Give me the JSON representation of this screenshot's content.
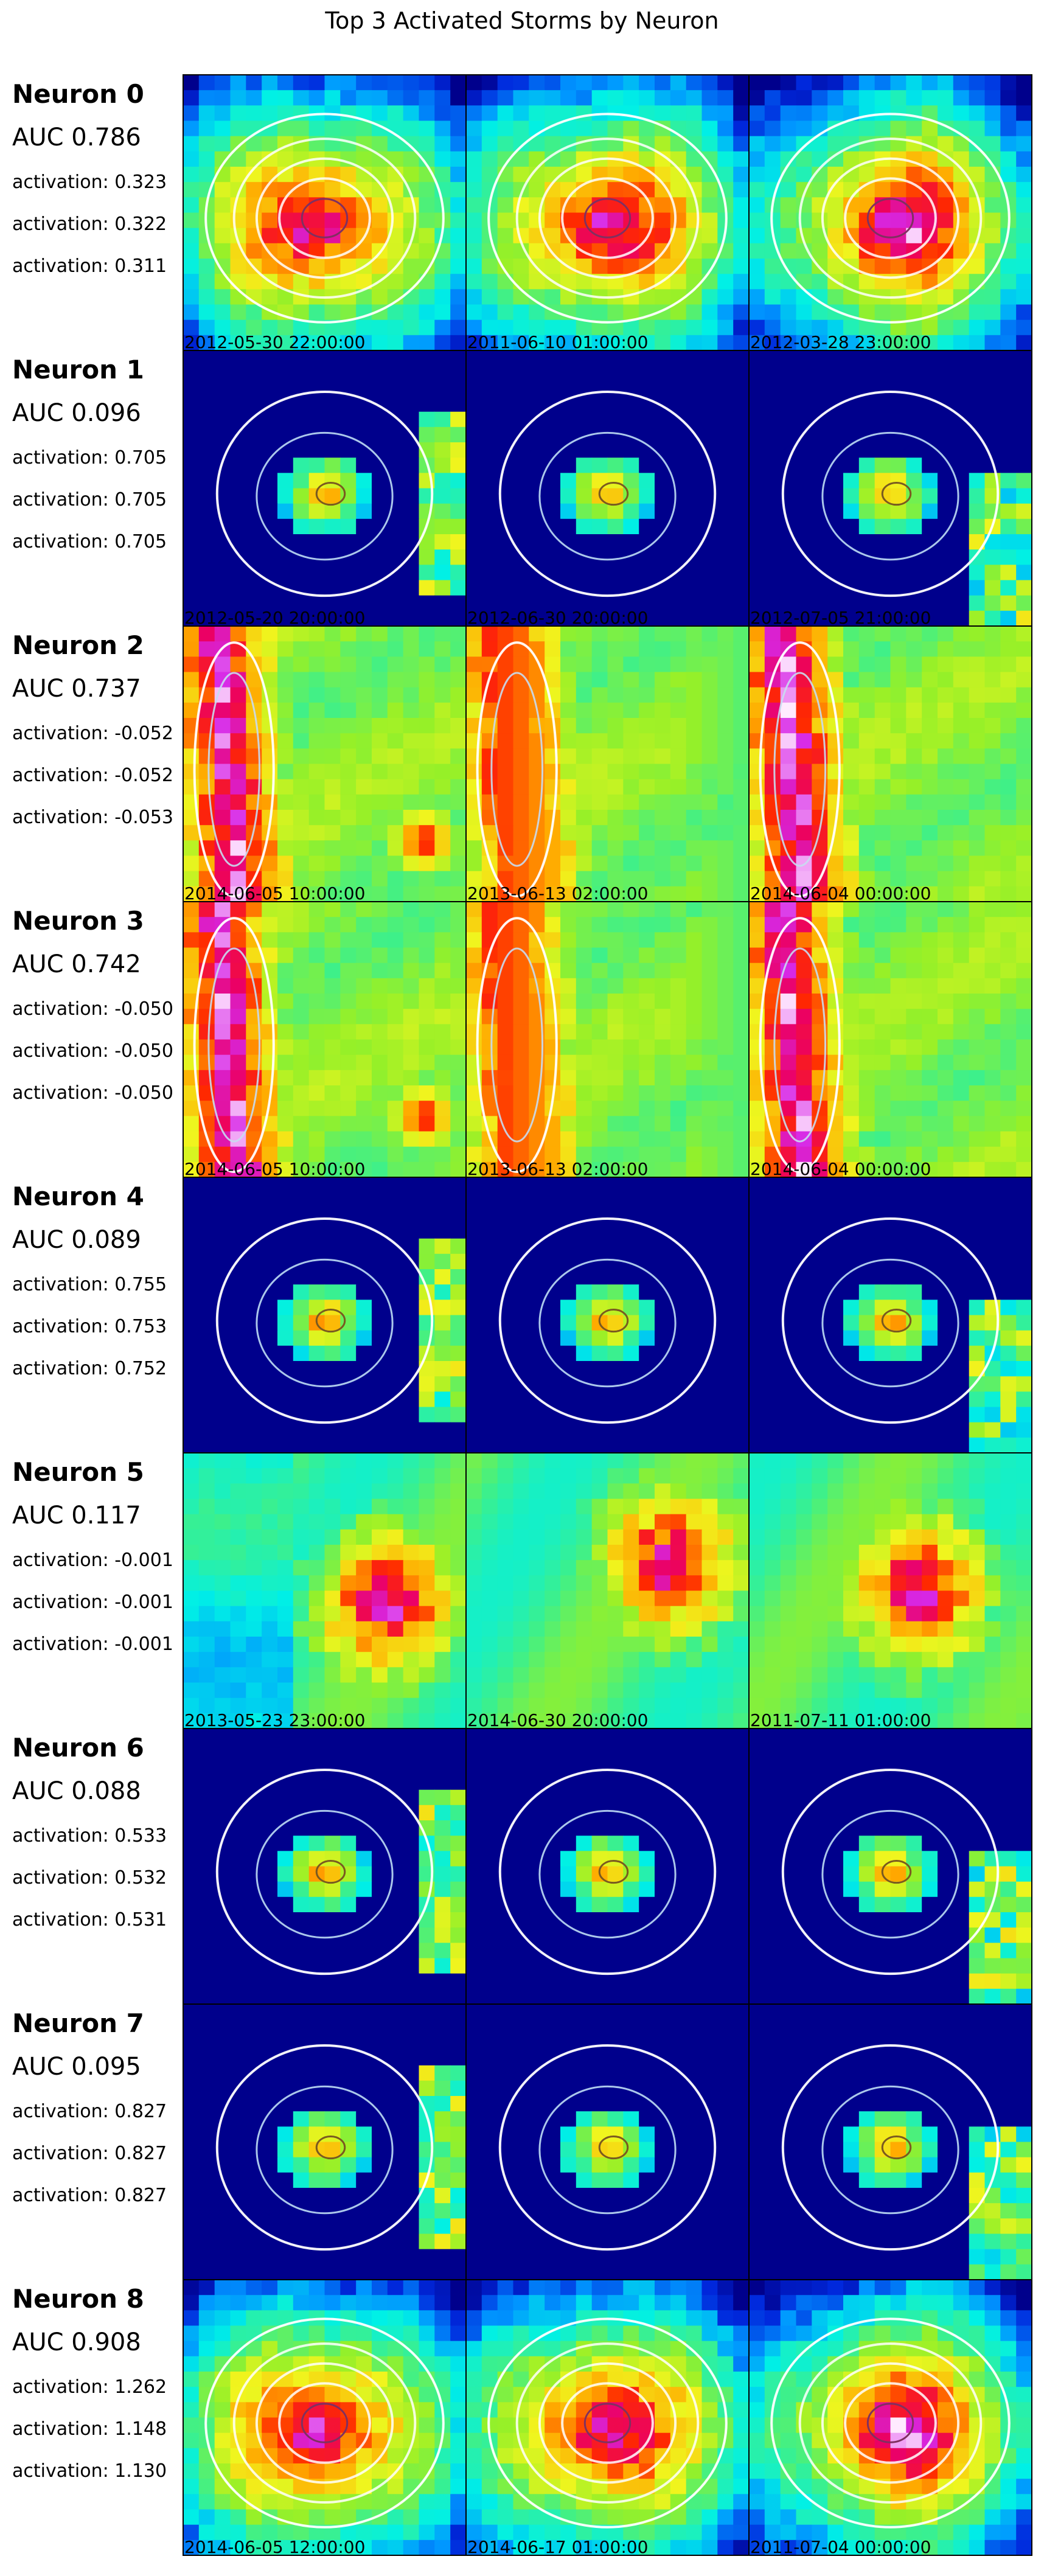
{
  "chart_data": {
    "type": "image-grid",
    "title": "Top 3 Activated Storms by Neuron",
    "columns_per_row": 3,
    "neurons": [
      {
        "label": "Neuron 0",
        "auc_label": "AUC 0.786",
        "auc": 0.786,
        "activations": [
          "activation: 0.323",
          "activation: 0.322",
          "activation: 0.311"
        ],
        "values": [
          0.323,
          0.322,
          0.311
        ],
        "timestamps": [
          "2012-05-30 22:00:00",
          "2011-06-10 01:00:00",
          "2012-03-28 23:00:00"
        ],
        "style": "storm"
      },
      {
        "label": "Neuron 1",
        "auc_label": "AUC 0.096",
        "auc": 0.096,
        "activations": [
          "activation: 0.705",
          "activation: 0.705",
          "activation: 0.705"
        ],
        "values": [
          0.705,
          0.705,
          0.705
        ],
        "timestamps": [
          "2012-05-20 20:00:00",
          "2012-06-30 20:00:00",
          "2012-07-05 21:00:00"
        ],
        "style": "dark"
      },
      {
        "label": "Neuron 2",
        "auc_label": "AUC 0.737",
        "auc": 0.737,
        "activations": [
          "activation: -0.052",
          "activation: -0.052",
          "activation: -0.053"
        ],
        "values": [
          -0.052,
          -0.052,
          -0.053
        ],
        "timestamps": [
          "2014-06-05 10:00:00",
          "2013-06-13 02:00:00",
          "2014-06-04 00:00:00"
        ],
        "style": "line"
      },
      {
        "label": "Neuron 3",
        "auc_label": "AUC 0.742",
        "auc": 0.742,
        "activations": [
          "activation: -0.050",
          "activation: -0.050",
          "activation: -0.050"
        ],
        "values": [
          -0.05,
          -0.05,
          -0.05
        ],
        "timestamps": [
          "2014-06-05 10:00:00",
          "2013-06-13 02:00:00",
          "2014-06-04 00:00:00"
        ],
        "style": "line"
      },
      {
        "label": "Neuron 4",
        "auc_label": "AUC 0.089",
        "auc": 0.089,
        "activations": [
          "activation: 0.755",
          "activation: 0.753",
          "activation: 0.752"
        ],
        "values": [
          0.755,
          0.753,
          0.752
        ],
        "timestamps": [
          "",
          "",
          ""
        ],
        "style": "dark"
      },
      {
        "label": "Neuron 5",
        "auc_label": "AUC 0.117",
        "auc": 0.117,
        "activations": [
          "activation: -0.001",
          "activation: -0.001",
          "activation: -0.001"
        ],
        "values": [
          -0.001,
          -0.001,
          -0.001
        ],
        "timestamps": [
          "2013-05-23 23:00:00",
          "2014-06-30 20:00:00",
          "2011-07-11 01:00:00"
        ],
        "style": "bright"
      },
      {
        "label": "Neuron 6",
        "auc_label": "AUC 0.088",
        "auc": 0.088,
        "activations": [
          "activation: 0.533",
          "activation: 0.532",
          "activation: 0.531"
        ],
        "values": [
          0.533,
          0.532,
          0.531
        ],
        "timestamps": [
          "",
          "",
          ""
        ],
        "style": "dark"
      },
      {
        "label": "Neuron 7",
        "auc_label": "AUC 0.095",
        "auc": 0.095,
        "activations": [
          "activation: 0.827",
          "activation: 0.827",
          "activation: 0.827"
        ],
        "values": [
          0.827,
          0.827,
          0.827
        ],
        "timestamps": [
          "",
          "",
          ""
        ],
        "style": "dark"
      },
      {
        "label": "Neuron 8",
        "auc_label": "AUC 0.908",
        "auc": 0.908,
        "activations": [
          "activation: 1.262",
          "activation: 1.148",
          "activation: 1.130"
        ],
        "values": [
          1.262,
          1.148,
          1.13
        ],
        "timestamps": [
          "2014-06-05 12:00:00",
          "2014-06-17 01:00:00",
          "2011-07-04 00:00:00"
        ],
        "style": "storm"
      }
    ]
  }
}
